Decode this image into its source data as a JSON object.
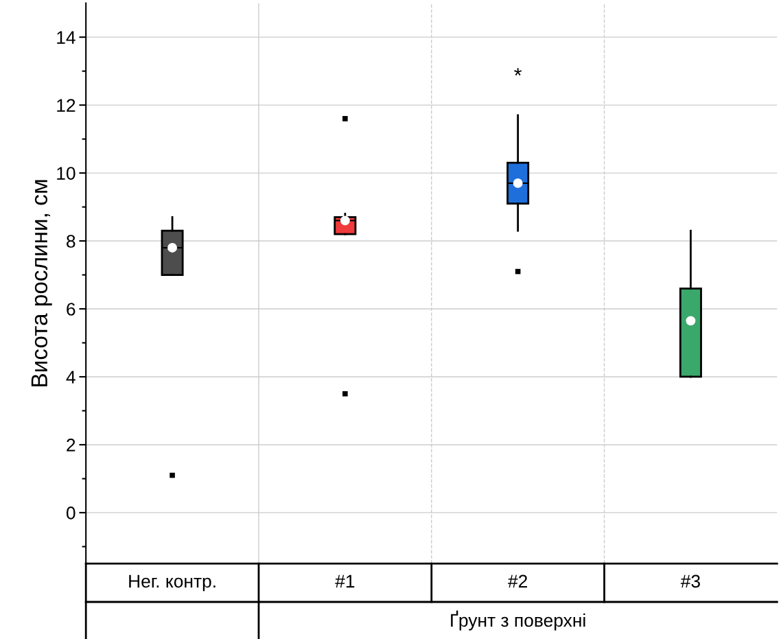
{
  "chart_data": {
    "type": "box",
    "ylabel": "Висота рослини, см",
    "categories": [
      "Нег. контр.",
      "#1",
      "#2",
      "#3"
    ],
    "colors": [
      "#4d4d4d",
      "#ef3b3b",
      "#1e6fdb",
      "#3aa86b"
    ],
    "boxes": [
      {
        "low": 7.0,
        "q1": 7.0,
        "median": 7.8,
        "q3": 8.3,
        "high": 8.7,
        "mean": 7.8,
        "outliers": [
          1.1
        ]
      },
      {
        "low": 8.2,
        "q1": 8.2,
        "median": 8.6,
        "q3": 8.7,
        "high": 8.8,
        "mean": 8.6,
        "outliers": [
          11.6,
          3.5
        ]
      },
      {
        "low": 8.3,
        "q1": 9.1,
        "median": 9.7,
        "q3": 10.3,
        "high": 11.7,
        "mean": 9.7,
        "outliers": [
          7.1
        ]
      },
      {
        "low": 4.0,
        "q1": 4.0,
        "median": 4.0,
        "q3": 6.6,
        "high": 8.3,
        "mean": 5.65
      }
    ],
    "ylim": [
      -1.5,
      15
    ],
    "yticks": [
      0,
      2,
      4,
      6,
      8,
      10,
      12,
      14
    ],
    "grid": true,
    "annotations": [
      "*",
      "Ґрунт з поверхні"
    ]
  }
}
